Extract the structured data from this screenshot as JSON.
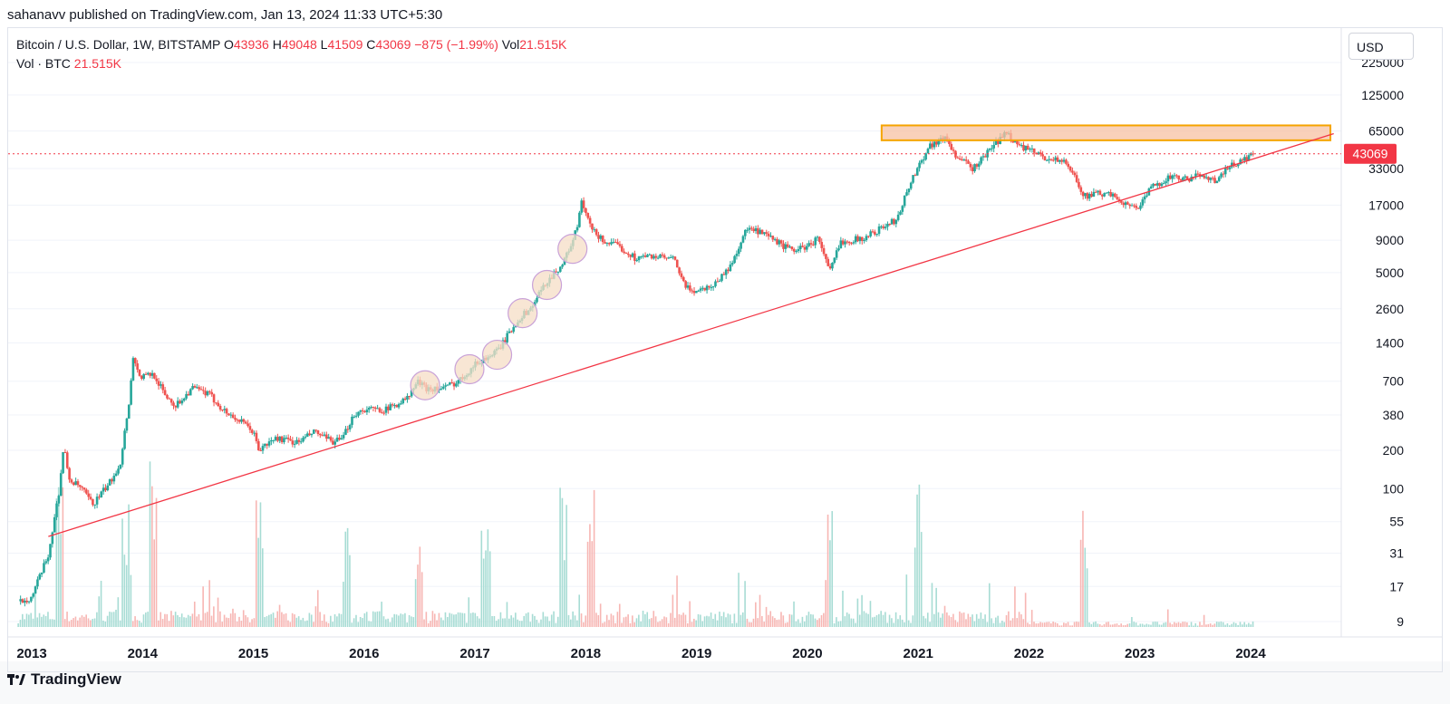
{
  "header": {
    "published": "sahanavv published on TradingView.com, Jan 13, 2024 11:33 UTC+5:30"
  },
  "legend": {
    "symbol": "Bitcoin / U.S. Dollar, 1W, BITSTAMP",
    "o_label": "O",
    "o_value": "43936",
    "h_label": "H",
    "h_value": "49048",
    "l_label": "L",
    "l_value": "41509",
    "c_label": "C",
    "c_value": "43069",
    "change": "−875 (−1.99%)",
    "vol_label": "Vol",
    "vol_value": "21.515K",
    "vol_line_label": "Vol · BTC",
    "vol_line_value": "21.515K"
  },
  "currency_button": "USD",
  "footer": {
    "brand": "TradingView",
    "logo": "tradingview-logo-icon"
  },
  "colors": {
    "up": "#26a69a",
    "down": "#ef5350",
    "trend": "#f23645",
    "zone_fill": "#f7c2a3",
    "zone_border": "#f5a400",
    "circle_fill": "#f5ddc6",
    "circle_stroke": "#c9a2d8"
  },
  "chart_data": {
    "type": "candlestick",
    "scale": "log",
    "title": "Bitcoin / U.S. Dollar, 1W, BITSTAMP",
    "xlabel": "",
    "ylabel": "",
    "x_ticks": [
      "2013",
      "2014",
      "2015",
      "2016",
      "2017",
      "2018",
      "2019",
      "2020",
      "2021",
      "2022",
      "2023",
      "2024"
    ],
    "y_ticks": [
      225000,
      125000,
      65000,
      33000,
      17000,
      9000,
      5000,
      2600,
      1400,
      700,
      380,
      200,
      100,
      55,
      31,
      17,
      9
    ],
    "ylim": [
      7,
      260000
    ],
    "last_price": 43069,
    "price_path": [
      [
        2012.9,
        13
      ],
      [
        2013.0,
        14
      ],
      [
        2013.15,
        30
      ],
      [
        2013.25,
        100
      ],
      [
        2013.29,
        230
      ],
      [
        2013.33,
        120
      ],
      [
        2013.45,
        100
      ],
      [
        2013.55,
        75
      ],
      [
        2013.7,
        110
      ],
      [
        2013.8,
        160
      ],
      [
        2013.88,
        500
      ],
      [
        2013.92,
        1150
      ],
      [
        2013.97,
        750
      ],
      [
        2014.1,
        800
      ],
      [
        2014.2,
        550
      ],
      [
        2014.3,
        450
      ],
      [
        2014.45,
        620
      ],
      [
        2014.6,
        550
      ],
      [
        2014.75,
        400
      ],
      [
        2014.9,
        330
      ],
      [
        2015.0,
        280
      ],
      [
        2015.05,
        200
      ],
      [
        2015.2,
        250
      ],
      [
        2015.4,
        230
      ],
      [
        2015.55,
        280
      ],
      [
        2015.7,
        235
      ],
      [
        2015.8,
        240
      ],
      [
        2015.9,
        380
      ],
      [
        2016.0,
        420
      ],
      [
        2016.2,
        420
      ],
      [
        2016.4,
        520
      ],
      [
        2016.48,
        700
      ],
      [
        2016.55,
        620
      ],
      [
        2016.7,
        610
      ],
      [
        2016.85,
        700
      ],
      [
        2017.0,
        950
      ],
      [
        2017.2,
        1200
      ],
      [
        2017.4,
        2200
      ],
      [
        2017.5,
        2600
      ],
      [
        2017.65,
        4300
      ],
      [
        2017.8,
        6000
      ],
      [
        2017.92,
        11000
      ],
      [
        2017.96,
        18000
      ],
      [
        2018.05,
        11000
      ],
      [
        2018.15,
        9000
      ],
      [
        2018.3,
        8000
      ],
      [
        2018.45,
        6500
      ],
      [
        2018.6,
        6800
      ],
      [
        2018.8,
        6300
      ],
      [
        2018.9,
        3800
      ],
      [
        2019.0,
        3600
      ],
      [
        2019.15,
        4000
      ],
      [
        2019.3,
        5500
      ],
      [
        2019.45,
        11000
      ],
      [
        2019.55,
        10500
      ],
      [
        2019.7,
        9000
      ],
      [
        2019.85,
        7500
      ],
      [
        2020.0,
        8000
      ],
      [
        2020.1,
        9500
      ],
      [
        2020.2,
        5000
      ],
      [
        2020.3,
        8800
      ],
      [
        2020.5,
        9300
      ],
      [
        2020.65,
        11000
      ],
      [
        2020.8,
        13000
      ],
      [
        2020.95,
        28000
      ],
      [
        2021.1,
        50000
      ],
      [
        2021.25,
        58000
      ],
      [
        2021.35,
        40000
      ],
      [
        2021.5,
        33000
      ],
      [
        2021.65,
        47000
      ],
      [
        2021.8,
        64000
      ],
      [
        2021.9,
        50000
      ],
      [
        2022.0,
        46000
      ],
      [
        2022.15,
        40000
      ],
      [
        2022.3,
        38000
      ],
      [
        2022.4,
        30000
      ],
      [
        2022.5,
        20000
      ],
      [
        2022.65,
        21000
      ],
      [
        2022.8,
        19500
      ],
      [
        2022.9,
        16500
      ],
      [
        2023.0,
        16800
      ],
      [
        2023.1,
        23000
      ],
      [
        2023.25,
        28000
      ],
      [
        2023.45,
        27000
      ],
      [
        2023.55,
        30000
      ],
      [
        2023.7,
        26000
      ],
      [
        2023.8,
        34000
      ],
      [
        2023.9,
        37000
      ],
      [
        2024.03,
        43069
      ]
    ],
    "resistance_zone": {
      "x_start": 2020.67,
      "x_end": 2024.72,
      "y_low": 55000,
      "y_high": 72000
    },
    "trendline": {
      "start": [
        2013.15,
        42
      ],
      "end": [
        2024.75,
        62000
      ]
    },
    "highlight_circles": [
      [
        2016.55,
        650
      ],
      [
        2016.95,
        870
      ],
      [
        2017.2,
        1130
      ],
      [
        2017.43,
        2400
      ],
      [
        2017.65,
        4000
      ],
      [
        2017.88,
        7700
      ]
    ],
    "volume_peak_years": [
      2013.25,
      2013.85,
      2014.1,
      2015.05,
      2015.85,
      2016.5,
      2017.1,
      2017.8,
      2018.05,
      2020.2,
      2021.0,
      2022.5
    ]
  }
}
